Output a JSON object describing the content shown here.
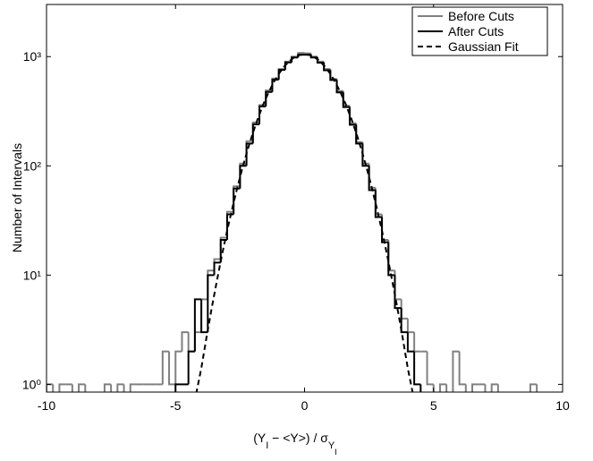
{
  "chart_data": {
    "type": "histogram",
    "xlabel_parts": [
      "(Y",
      "I",
      " − <Y>) /  σ",
      "Y",
      "I"
    ],
    "ylabel": "Number of Intervals",
    "xlim": [
      -10,
      10
    ],
    "ylim": [
      0.85,
      3000
    ],
    "log_y": true,
    "xticks": [
      -10,
      -5,
      0,
      5,
      10
    ],
    "yticks": [
      {
        "value": 1,
        "label": "10⁰"
      },
      {
        "value": 10,
        "label": "10¹"
      },
      {
        "value": 100,
        "label": "10²"
      },
      {
        "value": 1000,
        "label": "10³"
      }
    ],
    "legend_position": "upper right",
    "bins": [
      -10,
      -9.75,
      -9.5,
      -9.25,
      -9,
      -8.75,
      -8.5,
      -8.25,
      -8,
      -7.75,
      -7.5,
      -7.25,
      -7,
      -6.75,
      -6.5,
      -6.25,
      -6,
      -5.75,
      -5.5,
      -5.25,
      -5,
      -4.75,
      -4.5,
      -4.25,
      -4,
      -3.75,
      -3.5,
      -3.25,
      -3,
      -2.75,
      -2.5,
      -2.25,
      -2,
      -1.75,
      -1.5,
      -1.25,
      -1,
      -0.75,
      -0.5,
      -0.25,
      0,
      0.25,
      0.5,
      0.75,
      1,
      1.25,
      1.5,
      1.75,
      2,
      2.25,
      2.5,
      2.75,
      3,
      3.25,
      3.5,
      3.75,
      4,
      4.25,
      4.5,
      4.75,
      5,
      5.25,
      5.5,
      5.75,
      6,
      6.25,
      6.5,
      6.75,
      7,
      7.25,
      7.5,
      7.75,
      8,
      8.25,
      8.5,
      8.75,
      9,
      9.25,
      9.5,
      9.75,
      10
    ],
    "series": [
      {
        "name": "Before Cuts",
        "color": "#808080",
        "style": "step",
        "values": [
          1,
          0,
          1,
          1,
          0,
          1,
          0,
          0,
          0,
          1,
          0,
          1,
          0,
          1,
          1,
          1,
          1,
          1,
          2,
          1,
          2,
          3,
          2,
          3,
          6,
          11,
          14,
          22,
          38,
          65,
          105,
          168,
          250,
          360,
          490,
          630,
          770,
          900,
          1000,
          1080,
          1070,
          1000,
          900,
          770,
          625,
          485,
          355,
          245,
          165,
          105,
          63,
          36,
          21,
          11,
          6,
          4,
          3,
          2,
          2,
          1,
          0,
          1,
          0,
          2,
          1,
          0,
          1,
          1,
          0,
          1,
          0,
          0,
          0,
          0,
          0,
          1,
          0,
          0,
          0,
          0
        ]
      },
      {
        "name": "After Cuts",
        "color": "#000000",
        "style": "step",
        "values": [
          0,
          0,
          0,
          0,
          0,
          0,
          0,
          0,
          0,
          0,
          0,
          0,
          0,
          0,
          0,
          0,
          0,
          0,
          0,
          0,
          1,
          1,
          2,
          6,
          3,
          10,
          13,
          21,
          36,
          62,
          100,
          160,
          240,
          350,
          475,
          615,
          755,
          885,
          980,
          1040,
          1040,
          980,
          880,
          750,
          610,
          470,
          345,
          238,
          160,
          100,
          60,
          34,
          20,
          10,
          5,
          3,
          2,
          1,
          0,
          0,
          0,
          0,
          0,
          0,
          0,
          0,
          0,
          0,
          0,
          0,
          0,
          0,
          0,
          0,
          0,
          0,
          0,
          0,
          0,
          0
        ]
      },
      {
        "name": "Gaussian Fit",
        "color": "#000000",
        "style": "dashed",
        "x": [
          -4.2,
          -4.0,
          -3.8,
          -3.6,
          -3.4,
          -3.2,
          -3.0,
          -2.8,
          -2.6,
          -2.4,
          -2.2,
          -2.0,
          -1.8,
          -1.6,
          -1.4,
          -1.2,
          -1.0,
          -0.8,
          -0.6,
          -0.4,
          -0.2,
          0,
          0.2,
          0.4,
          0.6,
          0.8,
          1.0,
          1.2,
          1.4,
          1.6,
          1.8,
          2.0,
          2.2,
          2.4,
          2.6,
          2.8,
          3.0,
          3.2,
          3.4,
          3.6,
          3.8,
          4.0,
          4.2
        ],
        "values": [
          0.72,
          1.41,
          2.69,
          4.96,
          8.8,
          15.3,
          25.5,
          41,
          64,
          97,
          142,
          201,
          275,
          365,
          467,
          579,
          695,
          806,
          905,
          983,
          1033,
          1050,
          1033,
          983,
          905,
          806,
          695,
          579,
          467,
          365,
          275,
          201,
          142,
          97,
          64,
          41,
          25.5,
          15.3,
          8.8,
          4.96,
          2.69,
          1.41,
          0.72
        ]
      }
    ]
  }
}
